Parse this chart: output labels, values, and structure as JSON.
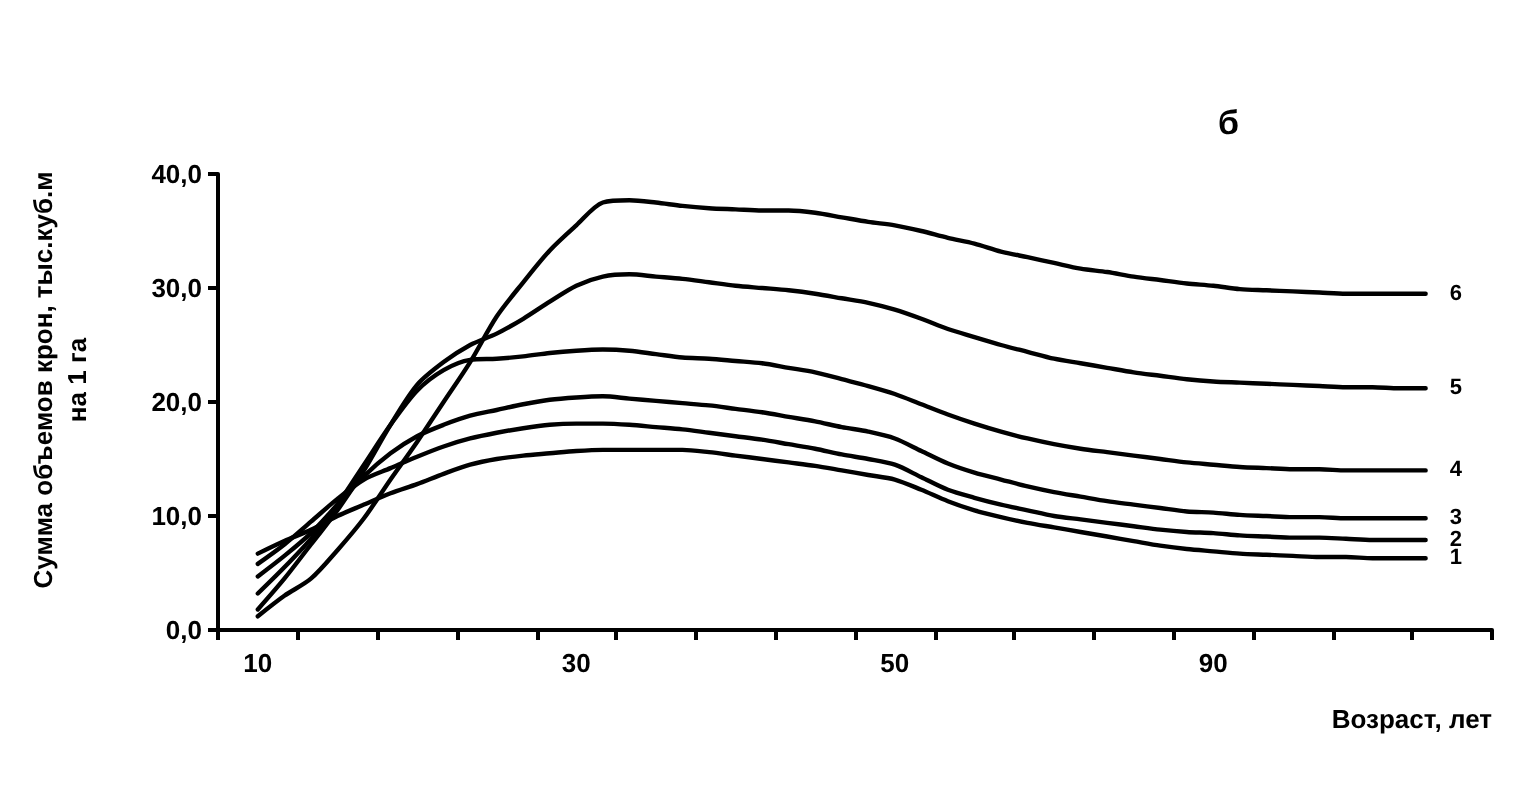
{
  "chart_data": {
    "type": "line",
    "title": "б",
    "xlabel": "Возраст, лет",
    "ylabel": "Сумма объемов крон, тыс.куб.м\nна 1 га",
    "categories": [
      null,
      "10",
      null,
      null,
      null,
      null,
      null,
      null,
      null,
      null,
      null,
      null,
      null,
      "30",
      null,
      null,
      null,
      null,
      null,
      null,
      null,
      null,
      null,
      null,
      null,
      "50",
      null,
      null,
      null,
      null,
      null,
      null,
      null,
      null,
      null,
      null,
      null,
      "90",
      null,
      null,
      null,
      null,
      null,
      null,
      null,
      null,
      null,
      null
    ],
    "ylim": [
      0,
      40
    ],
    "yticks": [
      {
        "value": 0,
        "label": "0,0"
      },
      {
        "value": 10,
        "label": "10,0"
      },
      {
        "value": 20,
        "label": "20,0"
      },
      {
        "value": 30,
        "label": "30,0"
      },
      {
        "value": 40,
        "label": "40,0"
      }
    ],
    "grid": false,
    "legend": false,
    "marker": "none",
    "line_style": "solid",
    "series": [
      {
        "name": "1",
        "color": "#000000",
        "values": [
          null,
          6.7,
          7.8,
          8.8,
          10.0,
          11.0,
          12.0,
          12.8,
          13.7,
          14.5,
          15.0,
          15.3,
          15.5,
          15.7,
          15.8,
          15.8,
          15.8,
          15.8,
          15.6,
          15.3,
          15.0,
          14.7,
          14.4,
          14.0,
          13.6,
          13.2,
          12.3,
          11.3,
          10.5,
          9.9,
          9.4,
          9.0,
          8.6,
          8.2,
          7.8,
          7.4,
          7.1,
          6.9,
          6.7,
          6.6,
          6.5,
          6.4,
          6.4,
          6.3,
          6.3,
          6.3,
          null,
          null
        ]
      },
      {
        "name": "2",
        "color": "#000000",
        "values": [
          null,
          5.8,
          7.5,
          9.5,
          11.5,
          13.2,
          14.2,
          15.2,
          16.1,
          16.8,
          17.3,
          17.7,
          18.0,
          18.1,
          18.1,
          18.0,
          17.8,
          17.6,
          17.3,
          17.0,
          16.7,
          16.3,
          15.9,
          15.4,
          15.0,
          14.5,
          13.4,
          12.3,
          11.6,
          11.0,
          10.5,
          10.0,
          9.7,
          9.4,
          9.1,
          8.8,
          8.6,
          8.5,
          8.3,
          8.2,
          8.1,
          8.1,
          8.0,
          7.9,
          7.9,
          7.9,
          null,
          null
        ]
      },
      {
        "name": "3",
        "color": "#000000",
        "values": [
          null,
          4.7,
          6.5,
          8.5,
          11.0,
          13.5,
          15.5,
          17.0,
          18.0,
          18.8,
          19.3,
          19.8,
          20.2,
          20.4,
          20.5,
          20.3,
          20.1,
          19.9,
          19.7,
          19.4,
          19.1,
          18.7,
          18.3,
          17.8,
          17.4,
          16.8,
          15.7,
          14.6,
          13.8,
          13.2,
          12.6,
          12.1,
          11.7,
          11.3,
          11.0,
          10.7,
          10.4,
          10.3,
          10.1,
          10.0,
          9.9,
          9.9,
          9.8,
          9.8,
          9.8,
          9.8,
          null,
          null
        ]
      },
      {
        "name": "4",
        "color": "#000000",
        "values": [
          null,
          3.2,
          5.5,
          8.0,
          11.0,
          14.5,
          18.0,
          21.0,
          22.8,
          23.7,
          23.8,
          24.0,
          24.3,
          24.5,
          24.6,
          24.5,
          24.2,
          23.9,
          23.8,
          23.6,
          23.4,
          23.0,
          22.6,
          22.0,
          21.4,
          20.7,
          19.8,
          18.9,
          18.1,
          17.4,
          16.8,
          16.3,
          15.9,
          15.6,
          15.3,
          15.0,
          14.7,
          14.5,
          14.3,
          14.2,
          14.1,
          14.1,
          14.0,
          14.0,
          14.0,
          14.0,
          null,
          null
        ]
      },
      {
        "name": "5",
        "color": "#000000",
        "values": [
          null,
          1.8,
          4.5,
          7.5,
          10.5,
          14.0,
          18.0,
          21.5,
          23.5,
          25.0,
          26.0,
          27.3,
          28.8,
          30.2,
          31.0,
          31.2,
          31.0,
          30.8,
          30.5,
          30.2,
          30.0,
          29.8,
          29.5,
          29.1,
          28.7,
          28.1,
          27.3,
          26.4,
          25.7,
          25.0,
          24.4,
          23.8,
          23.4,
          23.0,
          22.6,
          22.3,
          22.0,
          21.8,
          21.7,
          21.6,
          21.5,
          21.4,
          21.3,
          21.3,
          21.2,
          21.2,
          null,
          null
        ]
      },
      {
        "name": "6",
        "color": "#000000",
        "values": [
          null,
          1.2,
          3.0,
          4.5,
          7.0,
          9.8,
          13.2,
          16.5,
          20.0,
          23.5,
          27.5,
          30.5,
          33.3,
          35.5,
          37.5,
          37.7,
          37.5,
          37.2,
          37.0,
          36.9,
          36.8,
          36.8,
          36.6,
          36.2,
          35.8,
          35.5,
          35.0,
          34.4,
          33.9,
          33.2,
          32.7,
          32.2,
          31.7,
          31.4,
          31.0,
          30.7,
          30.4,
          30.2,
          29.9,
          29.8,
          29.7,
          29.6,
          29.5,
          29.5,
          29.5,
          29.5,
          null,
          null
        ]
      }
    ]
  }
}
